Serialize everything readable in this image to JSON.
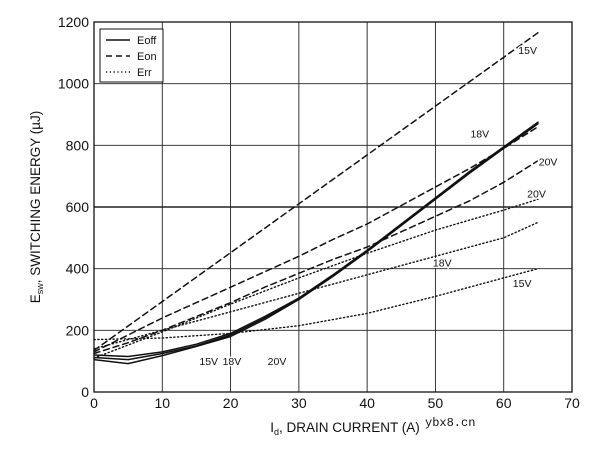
{
  "chart_data": {
    "type": "line",
    "xlabel_main": "I",
    "xlabel_sub": "d",
    "xlabel_rest": ", DRAIN CURRENT (A)",
    "ylabel_main": "E",
    "ylabel_sub": "sw",
    "ylabel_rest": ", SWITCHING ENERGY (µJ)",
    "xlim": [
      0,
      70
    ],
    "ylim": [
      0,
      1200
    ],
    "xticks": [
      0,
      10,
      20,
      30,
      40,
      50,
      60,
      70
    ],
    "yticks": [
      0,
      200,
      400,
      600,
      800,
      1000,
      1200
    ],
    "grid": true,
    "legend_position": "top-left",
    "legend": [
      {
        "label": "Eoff",
        "style": "solid"
      },
      {
        "label": "Eon",
        "style": "dashed"
      },
      {
        "label": "Err",
        "style": "dotted"
      }
    ],
    "series": [
      {
        "kind": "Eoff",
        "gate": "15V",
        "style": "solid",
        "x": [
          0,
          5,
          10,
          15,
          20,
          25,
          30,
          35,
          40,
          45,
          50,
          55,
          60,
          65
        ],
        "y": [
          105,
          92,
          118,
          148,
          180,
          235,
          300,
          375,
          455,
          540,
          625,
          710,
          790,
          870
        ]
      },
      {
        "kind": "Eoff",
        "gate": "18V",
        "style": "solid",
        "x": [
          0,
          5,
          10,
          15,
          20,
          25,
          30,
          35,
          40,
          45,
          50,
          55,
          60,
          65
        ],
        "y": [
          112,
          105,
          125,
          150,
          185,
          240,
          302,
          378,
          458,
          542,
          627,
          712,
          792,
          872
        ]
      },
      {
        "kind": "Eoff",
        "gate": "20V",
        "style": "solid",
        "x": [
          0,
          5,
          10,
          15,
          20,
          25,
          30,
          35,
          40,
          45,
          50,
          55,
          60,
          65
        ],
        "y": [
          120,
          115,
          130,
          155,
          190,
          245,
          305,
          380,
          460,
          545,
          630,
          715,
          795,
          875
        ]
      },
      {
        "kind": "Eon",
        "gate": "15V",
        "style": "dashed",
        "x": [
          0,
          65
        ],
        "y": [
          135,
          1165
        ]
      },
      {
        "kind": "Eon",
        "gate": "18V",
        "style": "dashed",
        "x": [
          0,
          5,
          10,
          15,
          20,
          25,
          30,
          35,
          40,
          45,
          50,
          55,
          60,
          65
        ],
        "y": [
          130,
          185,
          240,
          290,
          340,
          390,
          440,
          495,
          545,
          605,
          665,
          725,
          790,
          860
        ]
      },
      {
        "kind": "Eon",
        "gate": "20V",
        "style": "dashed",
        "x": [
          0,
          5,
          10,
          15,
          20,
          25,
          30,
          35,
          40,
          45,
          50,
          55,
          60,
          65
        ],
        "y": [
          125,
          160,
          200,
          245,
          290,
          340,
          385,
          430,
          470,
          520,
          570,
          620,
          680,
          750
        ]
      },
      {
        "kind": "Err",
        "gate": "15V",
        "style": "dotted",
        "x": [
          0,
          10,
          20,
          30,
          40,
          50,
          60,
          65
        ],
        "y": [
          170,
          175,
          190,
          215,
          255,
          310,
          370,
          400
        ]
      },
      {
        "kind": "Err",
        "gate": "18V",
        "style": "dotted",
        "x": [
          0,
          10,
          20,
          30,
          40,
          50,
          60,
          65
        ],
        "y": [
          140,
          200,
          260,
          320,
          380,
          440,
          500,
          550
        ]
      },
      {
        "kind": "Err",
        "gate": "20V",
        "style": "dotted",
        "x": [
          0,
          10,
          20,
          30,
          40,
          50,
          60,
          65
        ],
        "y": [
          110,
          195,
          285,
          370,
          450,
          525,
          590,
          625
        ]
      }
    ],
    "annotations": [
      {
        "text": "15V",
        "x": 63.5,
        "y": 1110
      },
      {
        "text": "18V",
        "x": 56.5,
        "y": 838
      },
      {
        "text": "20V",
        "x": 66.5,
        "y": 748
      },
      {
        "text": "20V",
        "x": 64.8,
        "y": 643
      },
      {
        "text": "18V",
        "x": 51,
        "y": 420
      },
      {
        "text": "15V",
        "x": 62.7,
        "y": 353
      },
      {
        "text": "15V",
        "x": 16.8,
        "y": 100
      },
      {
        "text": "18V",
        "x": 20.2,
        "y": 100
      },
      {
        "text": "20V",
        "x": 26.8,
        "y": 100
      }
    ]
  },
  "watermark": "ybx8.cn"
}
